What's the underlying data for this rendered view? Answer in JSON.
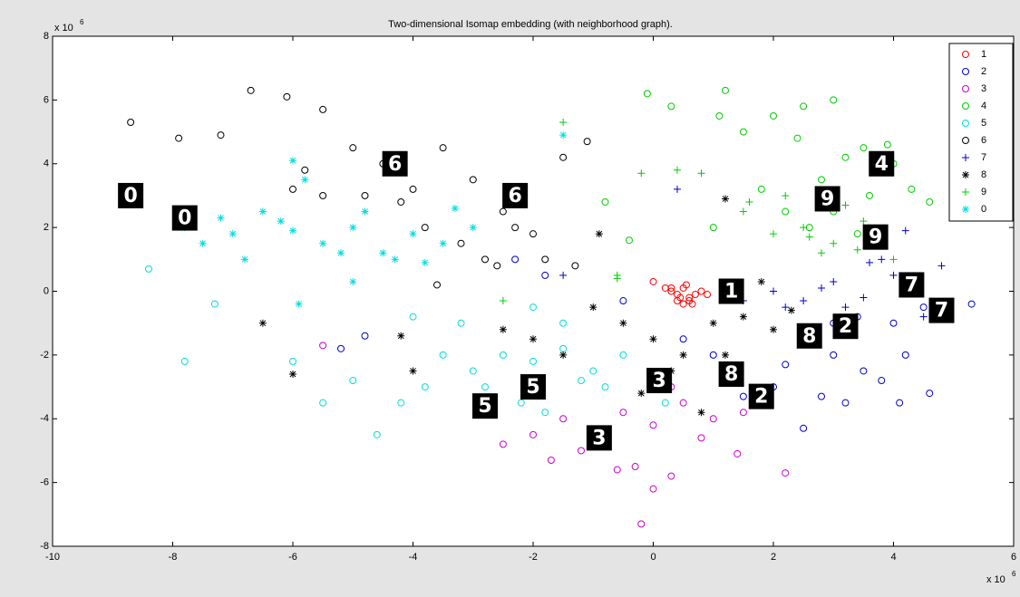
{
  "chart_data": {
    "type": "scatter",
    "title": "Two-dimensional Isomap embedding (with neighborhood graph).",
    "x_multiplier": "x 10",
    "x_multiplier_exp": "6",
    "y_multiplier": "x 10",
    "y_multiplier_exp": "6",
    "xlim": [
      -10,
      6
    ],
    "ylim": [
      -8,
      8
    ],
    "xticks": [
      -10,
      -8,
      -6,
      -4,
      -2,
      0,
      2,
      4,
      6
    ],
    "yticks": [
      -8,
      -6,
      -4,
      -2,
      0,
      2,
      4,
      6,
      8
    ],
    "legend": "upper right",
    "series": [
      {
        "name": "1",
        "color": "#ff0000",
        "marker": "o",
        "x": [
          0.2,
          0.3,
          0.4,
          0.5,
          0.6,
          0.7,
          0.8,
          0.4,
          0.5,
          0.6,
          0.3,
          0.9,
          0.0,
          0.55,
          0.45,
          0.65
        ],
        "values": [
          0.1,
          0.0,
          -0.1,
          0.1,
          -0.2,
          -0.1,
          0.0,
          -0.3,
          -0.4,
          -0.3,
          0.1,
          -0.1,
          0.3,
          0.2,
          -0.2,
          -0.4
        ]
      },
      {
        "name": "2",
        "color": "#0000cc",
        "marker": "o",
        "x": [
          2.5,
          3.0,
          3.5,
          4.0,
          4.5,
          2.0,
          2.8,
          3.2,
          3.8,
          4.2,
          5.3,
          4.6,
          4.1,
          2.5,
          1.5,
          1.0,
          0.5,
          -0.5,
          -1.8,
          -2.3,
          -4.8,
          -5.2,
          3.0,
          3.4,
          2.2
        ],
        "values": [
          -1.5,
          -2.0,
          -2.5,
          -1.0,
          -0.5,
          -3.0,
          -3.3,
          -3.5,
          -2.8,
          -2.0,
          -0.4,
          -3.2,
          -3.5,
          -4.3,
          -3.3,
          -2.0,
          -1.5,
          -0.3,
          0.5,
          1.0,
          -1.4,
          -1.8,
          -1.0,
          -0.8,
          -2.3
        ]
      },
      {
        "name": "3",
        "color": "#cc00cc",
        "marker": "o",
        "x": [
          -1.5,
          -1.0,
          -0.5,
          0,
          0.5,
          1.0,
          -1.2,
          -0.3,
          0.3,
          -0.8,
          0.8,
          1.4,
          -2.0,
          -2.5,
          -1.7,
          0.0,
          -0.2,
          -0.6,
          2.2,
          1.5,
          0.3,
          -5.5
        ],
        "values": [
          -4,
          -4.5,
          -3.8,
          -4.2,
          -3.5,
          -4.0,
          -5.0,
          -5.5,
          -5.8,
          -4.8,
          -4.6,
          -5.1,
          -4.5,
          -4.8,
          -5.3,
          -6.2,
          -7.3,
          -5.6,
          -5.7,
          -3.8,
          -3.0,
          -1.7
        ]
      },
      {
        "name": "4",
        "color": "#00cc00",
        "marker": "o",
        "x": [
          1.2,
          1.5,
          2.0,
          2.5,
          3.0,
          3.5,
          4.0,
          2.8,
          3.2,
          3.6,
          2.2,
          1.8,
          3.9,
          4.3,
          4.6,
          1.1,
          -0.1,
          0.3,
          2.6,
          3.0,
          3.4,
          2.4,
          1.0,
          -0.8,
          -0.4
        ],
        "values": [
          6.3,
          5.0,
          5.5,
          5.8,
          6.0,
          4.5,
          4.0,
          3.5,
          4.2,
          3.0,
          2.5,
          3.2,
          4.6,
          3.2,
          2.8,
          5.5,
          6.2,
          5.8,
          2.0,
          2.5,
          1.8,
          4.8,
          2.0,
          2.8,
          1.6
        ]
      },
      {
        "name": "5",
        "color": "#00dddd",
        "marker": "o",
        "x": [
          -3.0,
          -2.5,
          -2.0,
          -1.5,
          -1.0,
          -0.5,
          -2.8,
          -2.2,
          -1.8,
          -1.2,
          -0.8,
          -3.5,
          -3.8,
          -4.2,
          -4.6,
          -5.0,
          -5.5,
          -6.0,
          -7.3,
          -7.8,
          -8.4,
          -2.0,
          -1.5,
          -4.0,
          -3.2,
          0.2
        ],
        "values": [
          -2.5,
          -2.0,
          -2.2,
          -1.8,
          -2.5,
          -2.0,
          -3.0,
          -3.5,
          -3.8,
          -2.8,
          -3.0,
          -2.0,
          -3.0,
          -3.5,
          -4.5,
          -2.8,
          -3.5,
          -2.2,
          -0.4,
          -2.2,
          0.7,
          -0.5,
          -1.0,
          -0.8,
          -1.0,
          -3.5
        ]
      },
      {
        "name": "6",
        "color": "#000000",
        "marker": "o",
        "x": [
          -8.7,
          -7.9,
          -7.2,
          -6.7,
          -6.1,
          -5.8,
          -5.5,
          -5.0,
          -4.5,
          -4.0,
          -3.5,
          -3.0,
          -2.5,
          -2.0,
          -1.5,
          -1.1,
          -4.8,
          -4.2,
          -3.8,
          -3.2,
          -2.8,
          -2.3,
          -5.5,
          -6.0,
          -1.8,
          -1.3,
          -3.6,
          -2.6
        ],
        "values": [
          5.3,
          4.8,
          4.9,
          6.3,
          6.1,
          3.8,
          3.0,
          4.5,
          4.0,
          3.2,
          4.5,
          3.5,
          2.5,
          1.8,
          4.2,
          4.7,
          3.0,
          2.8,
          2.0,
          1.5,
          1.0,
          2.0,
          5.7,
          3.2,
          1.0,
          0.8,
          0.2,
          0.8
        ]
      },
      {
        "name": "7",
        "color": "#0000cc",
        "marker": "+",
        "x": [
          2.0,
          2.5,
          3.0,
          3.5,
          4.0,
          4.5,
          4.8,
          3.2,
          2.8,
          3.8,
          0.4,
          -1.5,
          1.5,
          2.2,
          4.2,
          3.6
        ],
        "values": [
          0.0,
          -0.3,
          0.3,
          -0.2,
          0.5,
          -0.8,
          0.8,
          -0.5,
          0.1,
          1.0,
          3.2,
          0.5,
          -0.3,
          -0.5,
          1.9,
          0.9
        ]
      },
      {
        "name": "8",
        "color": "#000000",
        "marker": "*",
        "x": [
          -0.5,
          0,
          0.5,
          1.0,
          1.5,
          2.0,
          -1.0,
          -1.5,
          -2.0,
          -2.5,
          0.8,
          1.2,
          0.3,
          -0.2,
          1.8,
          -6.5,
          -6.0,
          -4.0,
          -4.2,
          1.2,
          -0.9,
          2.3
        ],
        "values": [
          -1.0,
          -1.5,
          -2.0,
          -1.0,
          -0.8,
          -1.2,
          -0.5,
          -2.0,
          -1.5,
          -1.2,
          -3.8,
          -2.0,
          -2.5,
          -3.2,
          0.3,
          -1.0,
          -2.6,
          -2.5,
          -1.4,
          2.9,
          1.8,
          -0.6
        ]
      },
      {
        "name": "9",
        "color": "#00cc00",
        "marker": "+",
        "x": [
          1.5,
          2.0,
          2.5,
          3.0,
          3.5,
          4.0,
          2.2,
          2.8,
          3.2,
          3.7,
          1.6,
          2.6,
          -0.2,
          0.4,
          0.8,
          -0.6,
          -1.5,
          -2.5,
          -0.6,
          3.4
        ],
        "values": [
          2.5,
          1.8,
          2.0,
          1.5,
          2.2,
          1.0,
          3.0,
          1.2,
          2.7,
          1.8,
          2.8,
          1.7,
          3.7,
          3.8,
          3.7,
          0.5,
          5.3,
          -0.3,
          0.4,
          1.3
        ]
      },
      {
        "name": "0",
        "color": "#00dddd",
        "marker": "*",
        "x": [
          -7.8,
          -7.5,
          -7.0,
          -6.5,
          -6.0,
          -5.5,
          -5.0,
          -4.5,
          -4.0,
          -3.5,
          -3.0,
          -6.8,
          -6.2,
          -5.8,
          -5.2,
          -4.8,
          -4.3,
          -3.8,
          -6.0,
          -5.0,
          -1.5,
          -5.9,
          -7.2,
          -3.3
        ],
        "values": [
          2.0,
          1.5,
          1.8,
          2.5,
          1.9,
          1.5,
          2.0,
          1.2,
          1.8,
          1.5,
          2.0,
          1.0,
          2.2,
          3.5,
          1.2,
          2.5,
          1.0,
          0.9,
          4.1,
          0.3,
          4.9,
          -0.4,
          2.3,
          2.6
        ]
      }
    ],
    "annotations": [
      {
        "text": "0",
        "x": -8.7,
        "y": 3.0
      },
      {
        "text": "0",
        "x": -7.8,
        "y": 2.3
      },
      {
        "text": "6",
        "x": -4.3,
        "y": 4.0
      },
      {
        "text": "6",
        "x": -2.3,
        "y": 3.0
      },
      {
        "text": "5",
        "x": -2.0,
        "y": -3.0
      },
      {
        "text": "5",
        "x": -2.8,
        "y": -3.6
      },
      {
        "text": "3",
        "x": 0.1,
        "y": -2.8
      },
      {
        "text": "3",
        "x": -0.9,
        "y": -4.6
      },
      {
        "text": "1",
        "x": 1.3,
        "y": 0.0
      },
      {
        "text": "8",
        "x": 1.3,
        "y": -2.6
      },
      {
        "text": "2",
        "x": 1.8,
        "y": -3.3
      },
      {
        "text": "8",
        "x": 2.6,
        "y": -1.4
      },
      {
        "text": "2",
        "x": 3.2,
        "y": -1.1
      },
      {
        "text": "9",
        "x": 2.9,
        "y": 2.9
      },
      {
        "text": "4",
        "x": 3.8,
        "y": 4.0
      },
      {
        "text": "9",
        "x": 3.7,
        "y": 1.7
      },
      {
        "text": "7",
        "x": 4.3,
        "y": 0.2
      },
      {
        "text": "7",
        "x": 4.8,
        "y": -0.6
      }
    ]
  }
}
